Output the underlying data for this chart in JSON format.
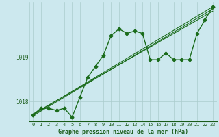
{
  "bg_color": "#cce8ee",
  "line_color": "#1a6b1a",
  "grid_color": "#aacccc",
  "text_color": "#1a5c1a",
  "xlabel": "Graphe pression niveau de la mer (hPa)",
  "xlim": [
    -0.5,
    23.5
  ],
  "ylim": [
    1017.55,
    1020.25
  ],
  "yticks": [
    1018,
    1019
  ],
  "xticks": [
    0,
    1,
    2,
    3,
    4,
    5,
    6,
    7,
    8,
    9,
    10,
    11,
    12,
    13,
    14,
    15,
    16,
    17,
    18,
    19,
    20,
    21,
    22,
    23
  ],
  "main_series": {
    "x": [
      0,
      1,
      2,
      3,
      4,
      5,
      6,
      7,
      8,
      9,
      10,
      11,
      12,
      13,
      14,
      15,
      16,
      17,
      18,
      19,
      20,
      21,
      22,
      23
    ],
    "y": [
      1017.7,
      1017.85,
      1017.85,
      1017.8,
      1017.85,
      1017.65,
      1018.1,
      1018.55,
      1018.8,
      1019.05,
      1019.5,
      1019.65,
      1019.55,
      1019.6,
      1019.55,
      1018.95,
      1018.95,
      1019.1,
      1018.95,
      1018.95,
      1018.95,
      1019.55,
      1019.85,
      1020.15
    ]
  },
  "ref_lines": [
    {
      "x0": 0,
      "y0": 1017.7,
      "x1": 23,
      "y1": 1020.15
    },
    {
      "x0": 0,
      "y0": 1017.72,
      "x1": 23,
      "y1": 1020.05
    },
    {
      "x0": 0,
      "y0": 1017.68,
      "x1": 23,
      "y1": 1020.1
    }
  ]
}
